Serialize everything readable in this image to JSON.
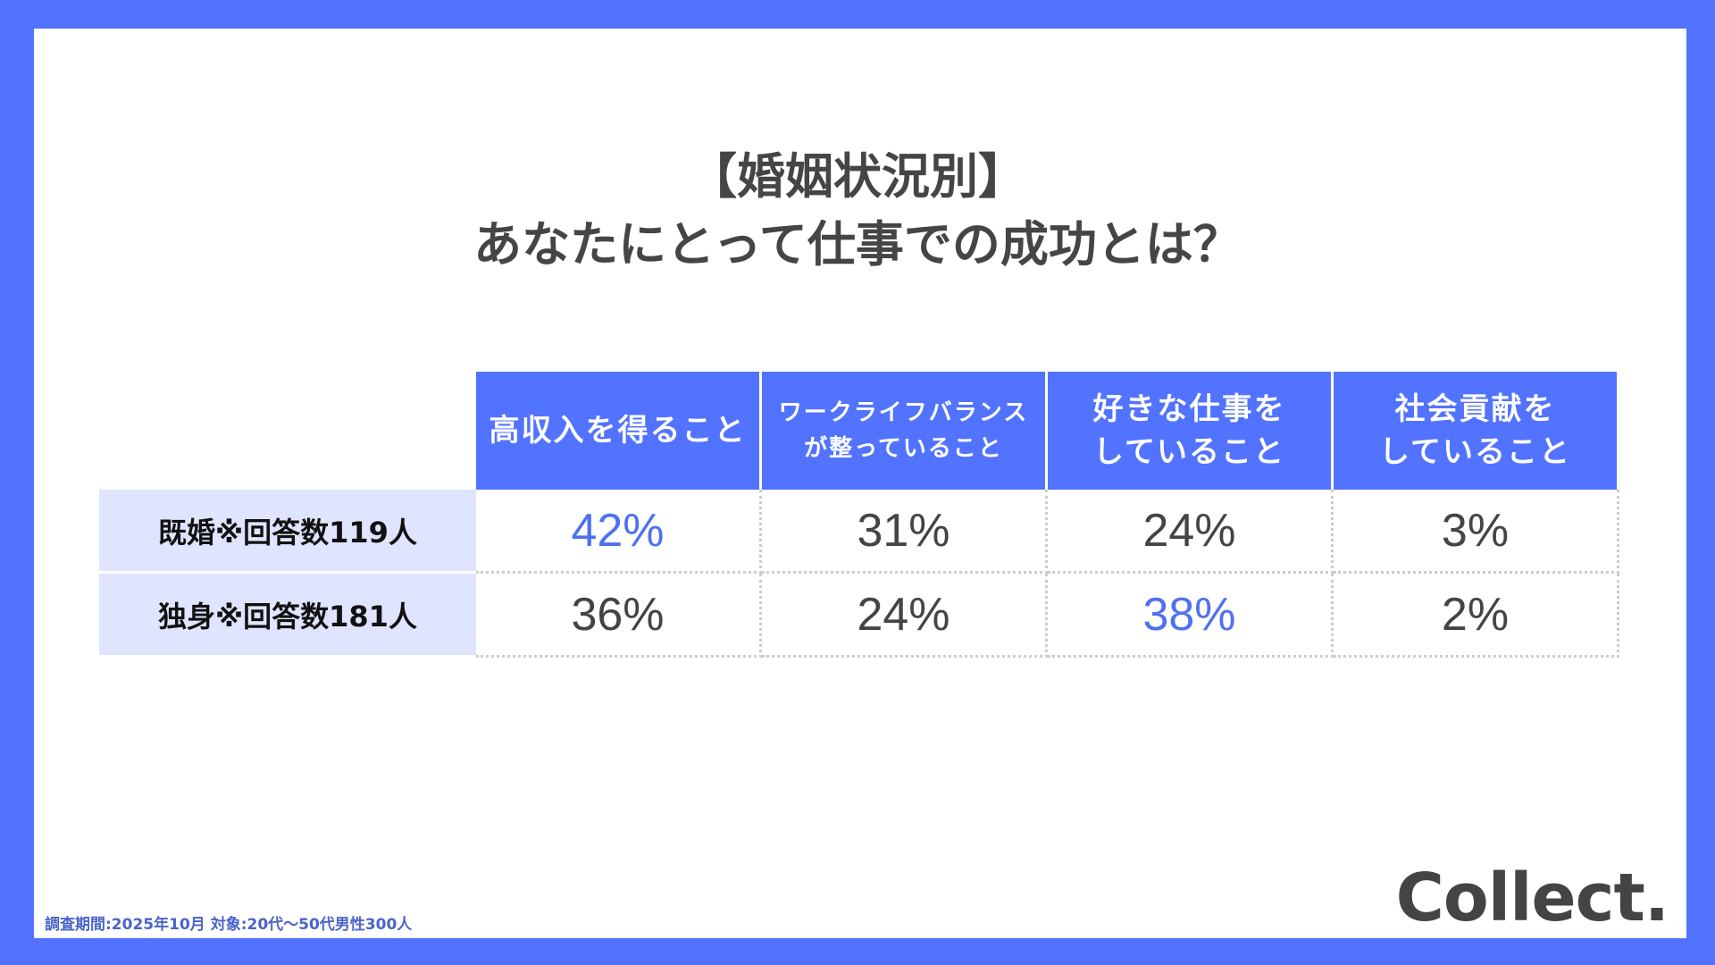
{
  "title": {
    "line1": "【婚姻状況別】",
    "line2": "あなたにとって仕事での成功とは？"
  },
  "table": {
    "headers": [
      "高収入を得ること",
      "ワークライフバランス\nが整っていること",
      "好きな仕事を\nしていること",
      "社会貢献を\nしていること"
    ],
    "rows": [
      {
        "label": "既婚※回答数119人",
        "values": [
          "42%",
          "31%",
          "24%",
          "3%"
        ],
        "highlight": 0
      },
      {
        "label": "独身※回答数181人",
        "values": [
          "36%",
          "24%",
          "38%",
          "2%"
        ],
        "highlight": 2
      }
    ]
  },
  "footer": "調査期間:2025年10月 対象:20代〜50代男性300人",
  "logo": "Collect.",
  "colors": {
    "accent": "#5273ff",
    "highlight_text": "#4f70f0",
    "row_label_bg": "#dfe5ff"
  }
}
